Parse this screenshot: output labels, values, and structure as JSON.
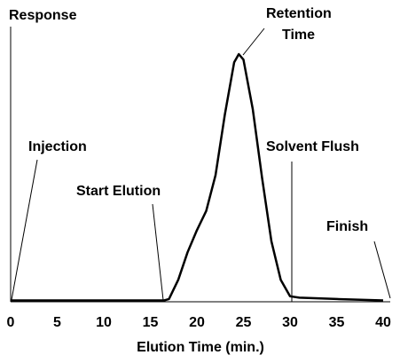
{
  "chart_data": {
    "type": "line",
    "ylabel": "Response",
    "xlabel": "Elution Time (min.)",
    "x": [
      0,
      16.5,
      17,
      18,
      19,
      20,
      21,
      22,
      23,
      24,
      24.5,
      25,
      26,
      27,
      28,
      29,
      30,
      31,
      35,
      40
    ],
    "values": [
      0.5,
      0.5,
      1,
      8,
      18,
      26,
      33,
      46,
      68,
      87,
      90,
      88,
      70,
      45,
      22,
      8,
      2,
      1.5,
      1,
      0.5
    ],
    "color": "#000000",
    "xlim": [
      0,
      40
    ],
    "xticks": [
      0,
      5,
      10,
      15,
      20,
      25,
      30,
      35,
      40
    ],
    "ylim": [
      0,
      100
    ],
    "annotations": [
      [
        "Injection"
      ],
      [
        "Start Elution"
      ],
      [
        "Retention",
        "Time"
      ],
      [
        "Solvent Flush"
      ],
      [
        "Finish"
      ]
    ]
  }
}
